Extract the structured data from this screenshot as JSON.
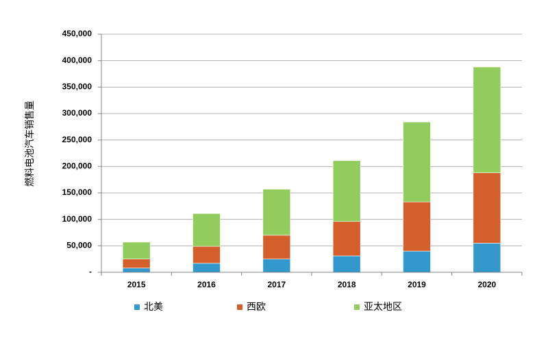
{
  "chart_data": {
    "type": "bar",
    "stacked": true,
    "title": "",
    "xlabel": "",
    "ylabel": "燃料电池汽车销售量",
    "categories": [
      "2015",
      "2016",
      "2017",
      "2018",
      "2019",
      "2020"
    ],
    "series": [
      {
        "name": "北美",
        "color": "#3399cc",
        "values": [
          8000,
          17000,
          25000,
          31000,
          40000,
          55000
        ]
      },
      {
        "name": "西欧",
        "color": "#d45f2b",
        "values": [
          17000,
          32000,
          45000,
          65000,
          93000,
          133000
        ]
      },
      {
        "name": "亚太地区",
        "color": "#92cc5c",
        "values": [
          32000,
          62000,
          87000,
          115000,
          151000,
          200000
        ]
      }
    ],
    "ylim": [
      0,
      450000
    ],
    "yticks": [
      0,
      50000,
      100000,
      150000,
      200000,
      250000,
      300000,
      350000,
      400000,
      450000
    ],
    "ytick_labels": [
      "-",
      "50,000",
      "100,000",
      "150,000",
      "200,000",
      "250,000",
      "300,000",
      "350,000",
      "400,000",
      "450,000"
    ],
    "grid": true,
    "legend_position": "bottom"
  }
}
